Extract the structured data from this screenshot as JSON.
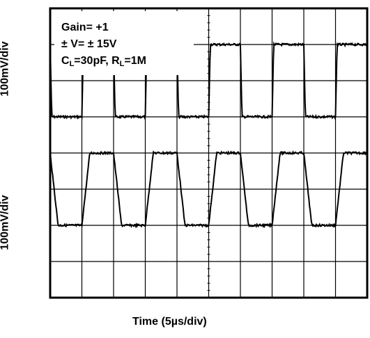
{
  "chart_data": {
    "type": "line",
    "title": "",
    "xlabel": "Time (5µs/div)",
    "ylabel_top": "100mV/div",
    "ylabel_bottom": "100mV/div",
    "divisions": {
      "x": 10,
      "y": 8
    },
    "annotations": {
      "gain": "Gain= +1",
      "supply": "± V= ± 15V",
      "load_c_prefix": "C",
      "load_c_sub": "L",
      "load_c_value": "=30pF, R",
      "load_r_sub": "L",
      "load_r_value": "=1M"
    },
    "series": [
      {
        "role": "top trace",
        "description_levels_div": {
          "high": 7,
          "low": 5
        },
        "period_div": 2,
        "first_rise_div": 1,
        "edge_time_div": 0.05,
        "start_level": "high"
      },
      {
        "role": "bottom trace",
        "description_levels_div": {
          "high": 4,
          "low": 2
        },
        "period_div": 2,
        "first_rise_div": 1,
        "edge_time_div": 0.25,
        "start_level": "high"
      }
    ]
  }
}
